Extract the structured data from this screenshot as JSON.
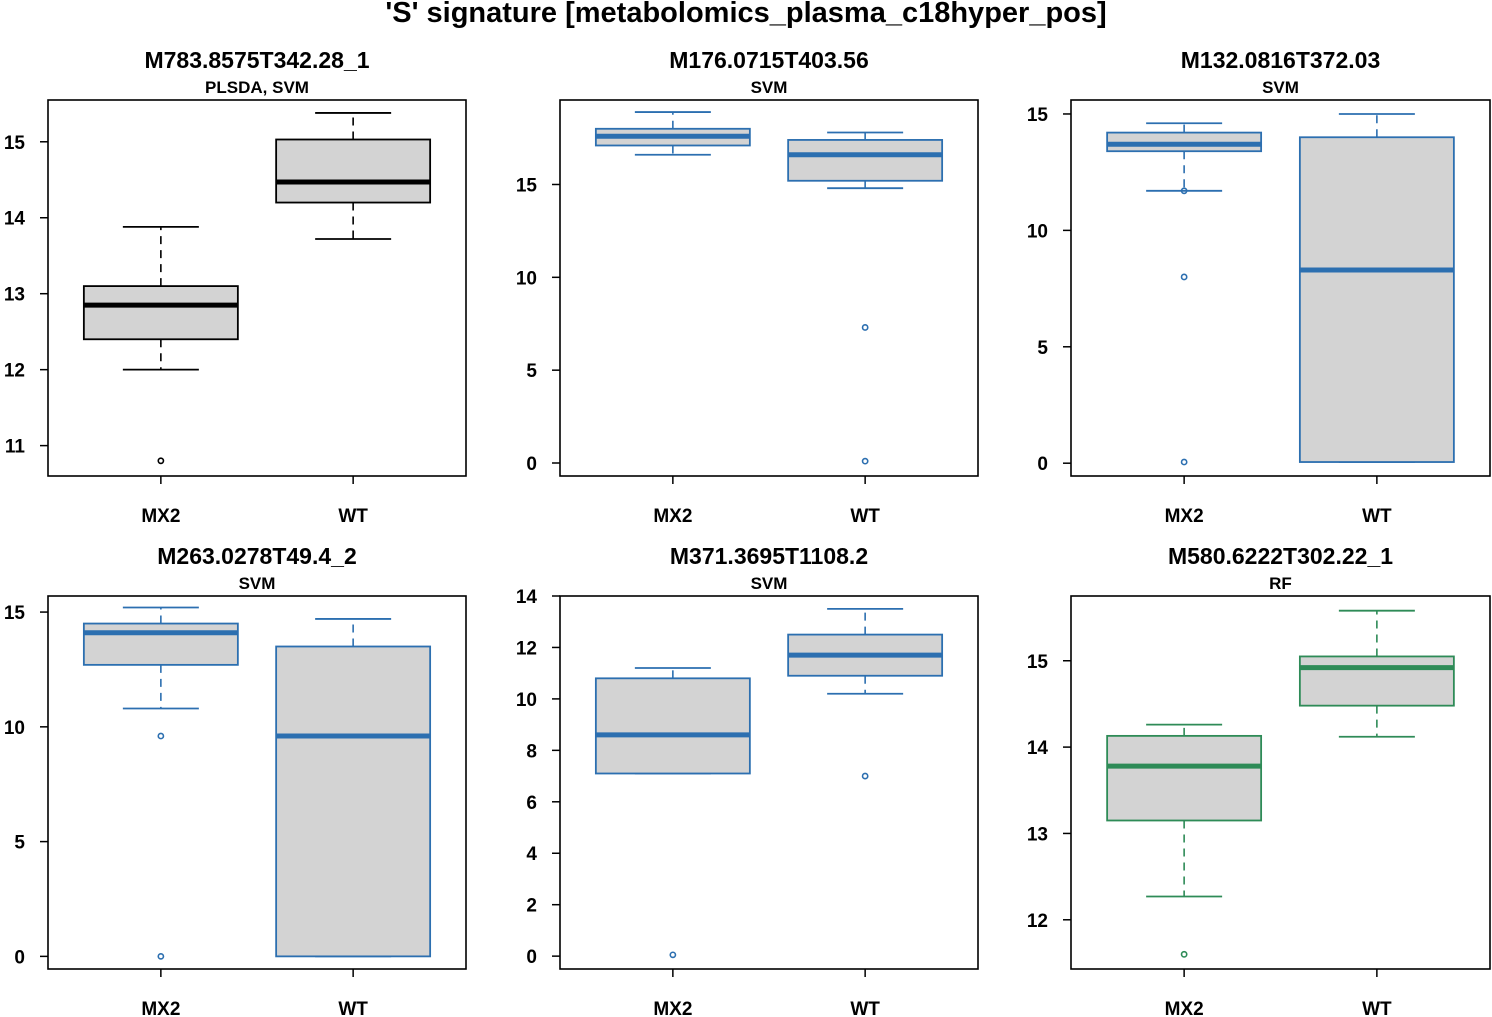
{
  "figure": {
    "title": "'S' signature [metabolomics_plasma_c18hyper_pos]"
  },
  "palette": {
    "box_fill": "#d3d3d3",
    "black": "#000000",
    "blue": "#2c6fb0",
    "green": "#2e8b57"
  },
  "chart_data": [
    {
      "type": "boxplot",
      "title": "M783.8575T342.28_1",
      "subtitle": "PLSDA, SVM",
      "color": "#000000",
      "categories": [
        "MX2",
        "WT"
      ],
      "yticks": [
        11,
        12,
        13,
        14,
        15
      ],
      "ylim": [
        10.6,
        15.55
      ],
      "boxes": [
        {
          "name": "MX2",
          "whisker_low": 12.0,
          "q1": 12.4,
          "median": 12.85,
          "q3": 13.1,
          "whisker_high": 13.88,
          "outliers": [
            10.8
          ]
        },
        {
          "name": "WT",
          "whisker_low": 13.72,
          "q1": 14.2,
          "median": 14.47,
          "q3": 15.03,
          "whisker_high": 15.38,
          "outliers": []
        }
      ]
    },
    {
      "type": "boxplot",
      "title": "M176.0715T403.56",
      "subtitle": "SVM",
      "color": "#2c6fb0",
      "categories": [
        "MX2",
        "WT"
      ],
      "yticks": [
        0,
        5,
        10,
        15
      ],
      "ylim": [
        -0.7,
        19.55
      ],
      "boxes": [
        {
          "name": "MX2",
          "whisker_low": 16.6,
          "q1": 17.1,
          "median": 17.6,
          "q3": 18.0,
          "whisker_high": 18.9,
          "outliers": []
        },
        {
          "name": "WT",
          "whisker_low": 14.8,
          "q1": 15.2,
          "median": 16.6,
          "q3": 17.4,
          "whisker_high": 17.8,
          "outliers": [
            7.3,
            0.1
          ]
        }
      ]
    },
    {
      "type": "boxplot",
      "title": "M132.0816T372.03",
      "subtitle": "SVM",
      "color": "#2c6fb0",
      "categories": [
        "MX2",
        "WT"
      ],
      "yticks": [
        0,
        5,
        10,
        15
      ],
      "ylim": [
        -0.55,
        15.6
      ],
      "boxes": [
        {
          "name": "MX2",
          "whisker_low": 11.7,
          "q1": 13.4,
          "median": 13.7,
          "q3": 14.2,
          "whisker_high": 14.6,
          "outliers": [
            11.7,
            8.0,
            0.05
          ]
        },
        {
          "name": "WT",
          "whisker_low": 0.05,
          "q1": 0.05,
          "median": 8.3,
          "q3": 14.0,
          "whisker_high": 15.0,
          "outliers": []
        }
      ]
    },
    {
      "type": "boxplot",
      "title": "M263.0278T49.4_2",
      "subtitle": "SVM",
      "color": "#2c6fb0",
      "categories": [
        "MX2",
        "WT"
      ],
      "yticks": [
        0,
        5,
        10,
        15
      ],
      "ylim": [
        -0.55,
        15.7
      ],
      "boxes": [
        {
          "name": "MX2",
          "whisker_low": 10.8,
          "q1": 12.7,
          "median": 14.1,
          "q3": 14.5,
          "whisker_high": 15.2,
          "outliers": [
            9.6,
            0.0
          ]
        },
        {
          "name": "WT",
          "whisker_low": 0.0,
          "q1": 0.0,
          "median": 9.6,
          "q3": 13.5,
          "whisker_high": 14.7,
          "outliers": []
        }
      ]
    },
    {
      "type": "boxplot",
      "title": "M371.3695T1108.2",
      "subtitle": "SVM",
      "color": "#2c6fb0",
      "categories": [
        "MX2",
        "WT"
      ],
      "yticks": [
        0,
        2,
        4,
        6,
        8,
        10,
        12,
        14
      ],
      "ylim": [
        -0.5,
        14.0
      ],
      "boxes": [
        {
          "name": "MX2",
          "whisker_low": 7.1,
          "q1": 7.1,
          "median": 8.6,
          "q3": 10.8,
          "whisker_high": 11.2,
          "outliers": [
            0.05
          ]
        },
        {
          "name": "WT",
          "whisker_low": 10.2,
          "q1": 10.9,
          "median": 11.7,
          "q3": 12.5,
          "whisker_high": 13.5,
          "outliers": [
            7.0
          ]
        }
      ]
    },
    {
      "type": "boxplot",
      "title": "M580.6222T302.22_1",
      "subtitle": "RF",
      "color": "#2e8b57",
      "categories": [
        "MX2",
        "WT"
      ],
      "yticks": [
        12,
        13,
        14,
        15
      ],
      "ylim": [
        11.43,
        15.75
      ],
      "boxes": [
        {
          "name": "MX2",
          "whisker_low": 12.27,
          "q1": 13.15,
          "median": 13.78,
          "q3": 14.13,
          "whisker_high": 14.26,
          "outliers": [
            11.6
          ]
        },
        {
          "name": "WT",
          "whisker_low": 14.12,
          "q1": 14.48,
          "median": 14.92,
          "q3": 15.05,
          "whisker_high": 15.58,
          "outliers": []
        }
      ]
    }
  ]
}
